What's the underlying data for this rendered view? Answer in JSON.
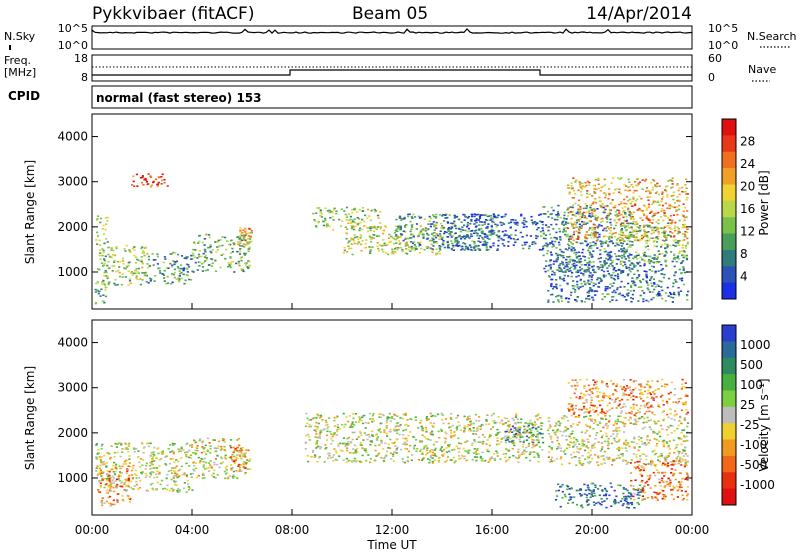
{
  "header": {
    "station": "Pykkvibaer (fitACF)",
    "beam": "Beam 05",
    "date": "14/Apr/2014"
  },
  "mini_panels": {
    "nsky_label": "N.Sky",
    "nsky_ticks": [
      "10^5",
      "10^0"
    ],
    "nsearch_label": "N.Search",
    "nsearch_ticks": [
      "10^5",
      "10^0"
    ],
    "freq_label": "Freq.",
    "freq_unit": "[MHz]",
    "freq_ticks": [
      "18",
      "8"
    ],
    "nave_label": "Nave",
    "nave_ticks": [
      "60",
      "0"
    ],
    "cpid_label": "CPID",
    "cpid_text": "normal (fast stereo) 153"
  },
  "colors": {
    "background": "#ffffff",
    "velocity_ground": "#bdbdbd"
  },
  "chart_data": [
    {
      "type": "heatmap",
      "panel": "power",
      "ylabel": "Slant Range [km]",
      "ylim": [
        180,
        4500
      ],
      "yticks": [
        1000,
        2000,
        3000,
        4000
      ],
      "xlim": [
        0,
        24
      ],
      "xticks": [
        "00:00",
        "04:00",
        "08:00",
        "12:00",
        "16:00",
        "20:00",
        "00:00"
      ],
      "colorbar": {
        "label": "Power [dB]",
        "ticks": [
          "28",
          "24",
          "20",
          "16",
          "12",
          "8",
          "4"
        ],
        "colors": [
          "#1a2fe6",
          "#2a52b8",
          "#2e7d7a",
          "#4a9e5a",
          "#78c24a",
          "#b8d84a",
          "#f0d232",
          "#f0a028",
          "#f07020",
          "#e83818",
          "#e01010"
        ]
      },
      "regions": [
        {
          "t0": 0.1,
          "t1": 0.6,
          "r0": 300,
          "r1": 2300,
          "level": 0.6
        },
        {
          "t0": 0.6,
          "t1": 2.2,
          "r0": 700,
          "r1": 1600,
          "level": 0.55
        },
        {
          "t0": 2.2,
          "t1": 4.0,
          "r0": 750,
          "r1": 1450,
          "level": 0.7
        },
        {
          "t0": 4.0,
          "t1": 6.3,
          "r0": 1000,
          "r1": 1850,
          "level": 0.62
        },
        {
          "t0": 1.5,
          "t1": 3.0,
          "r0": 2900,
          "r1": 3200,
          "level": 0.1
        },
        {
          "t0": 5.8,
          "t1": 6.4,
          "r0": 1600,
          "r1": 2000,
          "level": 0.4
        },
        {
          "t0": 8.8,
          "t1": 11.5,
          "r0": 1950,
          "r1": 2450,
          "level": 0.55
        },
        {
          "t0": 10.0,
          "t1": 14.0,
          "r0": 1400,
          "r1": 2050,
          "level": 0.5
        },
        {
          "t0": 12.0,
          "t1": 16.2,
          "r0": 1500,
          "r1": 2300,
          "level": 0.7
        },
        {
          "t0": 14.0,
          "t1": 18.0,
          "r0": 1500,
          "r1": 2300,
          "level": 0.85
        },
        {
          "t0": 18.0,
          "t1": 21.5,
          "r0": 1000,
          "r1": 2500,
          "level": 0.75
        },
        {
          "t0": 18.2,
          "t1": 23.8,
          "r0": 350,
          "r1": 1400,
          "level": 0.8
        },
        {
          "t0": 19.0,
          "t1": 23.8,
          "r0": 1700,
          "r1": 3100,
          "level": 0.35
        },
        {
          "t0": 21.0,
          "t1": 23.8,
          "r0": 1200,
          "r1": 2100,
          "level": 0.6
        }
      ]
    },
    {
      "type": "heatmap",
      "panel": "velocity",
      "ylabel": "Slant Range [km]",
      "ylim": [
        180,
        4500
      ],
      "yticks": [
        1000,
        2000,
        3000,
        4000
      ],
      "xlim": [
        0,
        24
      ],
      "xticks": [
        "00:00",
        "04:00",
        "08:00",
        "12:00",
        "16:00",
        "20:00",
        "00:00"
      ],
      "xlabel": "Time UT",
      "colorbar": {
        "label": "Velocity [m s⁻¹]",
        "ticks": [
          "1000",
          "500",
          "100",
          "25",
          "-25",
          "-100",
          "-500",
          "-1000"
        ],
        "colors": [
          "#2a3fd0",
          "#2a6a9a",
          "#2e8a60",
          "#46b040",
          "#7cd040",
          "#bdbdbd",
          "#f0d030",
          "#f09a20",
          "#f06818",
          "#e83010",
          "#e01010"
        ]
      },
      "regions": [
        {
          "t0": 0.1,
          "t1": 4.0,
          "r0": 700,
          "r1": 1800,
          "level": 0.5
        },
        {
          "t0": 0.2,
          "t1": 1.5,
          "r0": 400,
          "r1": 1300,
          "level": 0.7
        },
        {
          "t0": 4.0,
          "t1": 6.3,
          "r0": 1000,
          "r1": 1900,
          "level": 0.55
        },
        {
          "t0": 5.5,
          "t1": 6.3,
          "r0": 1200,
          "r1": 1700,
          "level": 0.75
        },
        {
          "t0": 8.5,
          "t1": 18.0,
          "r0": 1350,
          "r1": 2450,
          "level": 0.5
        },
        {
          "t0": 16.5,
          "t1": 18.0,
          "r0": 1800,
          "r1": 2200,
          "level": 0.2
        },
        {
          "t0": 18.2,
          "t1": 23.8,
          "r0": 1300,
          "r1": 2400,
          "level": 0.52
        },
        {
          "t0": 18.5,
          "t1": 22.0,
          "r0": 350,
          "r1": 900,
          "level": 0.15
        },
        {
          "t0": 21.5,
          "t1": 23.8,
          "r0": 500,
          "r1": 1400,
          "level": 0.75
        },
        {
          "t0": 19.0,
          "t1": 23.8,
          "r0": 2400,
          "r1": 3200,
          "level": 0.7
        }
      ]
    }
  ]
}
